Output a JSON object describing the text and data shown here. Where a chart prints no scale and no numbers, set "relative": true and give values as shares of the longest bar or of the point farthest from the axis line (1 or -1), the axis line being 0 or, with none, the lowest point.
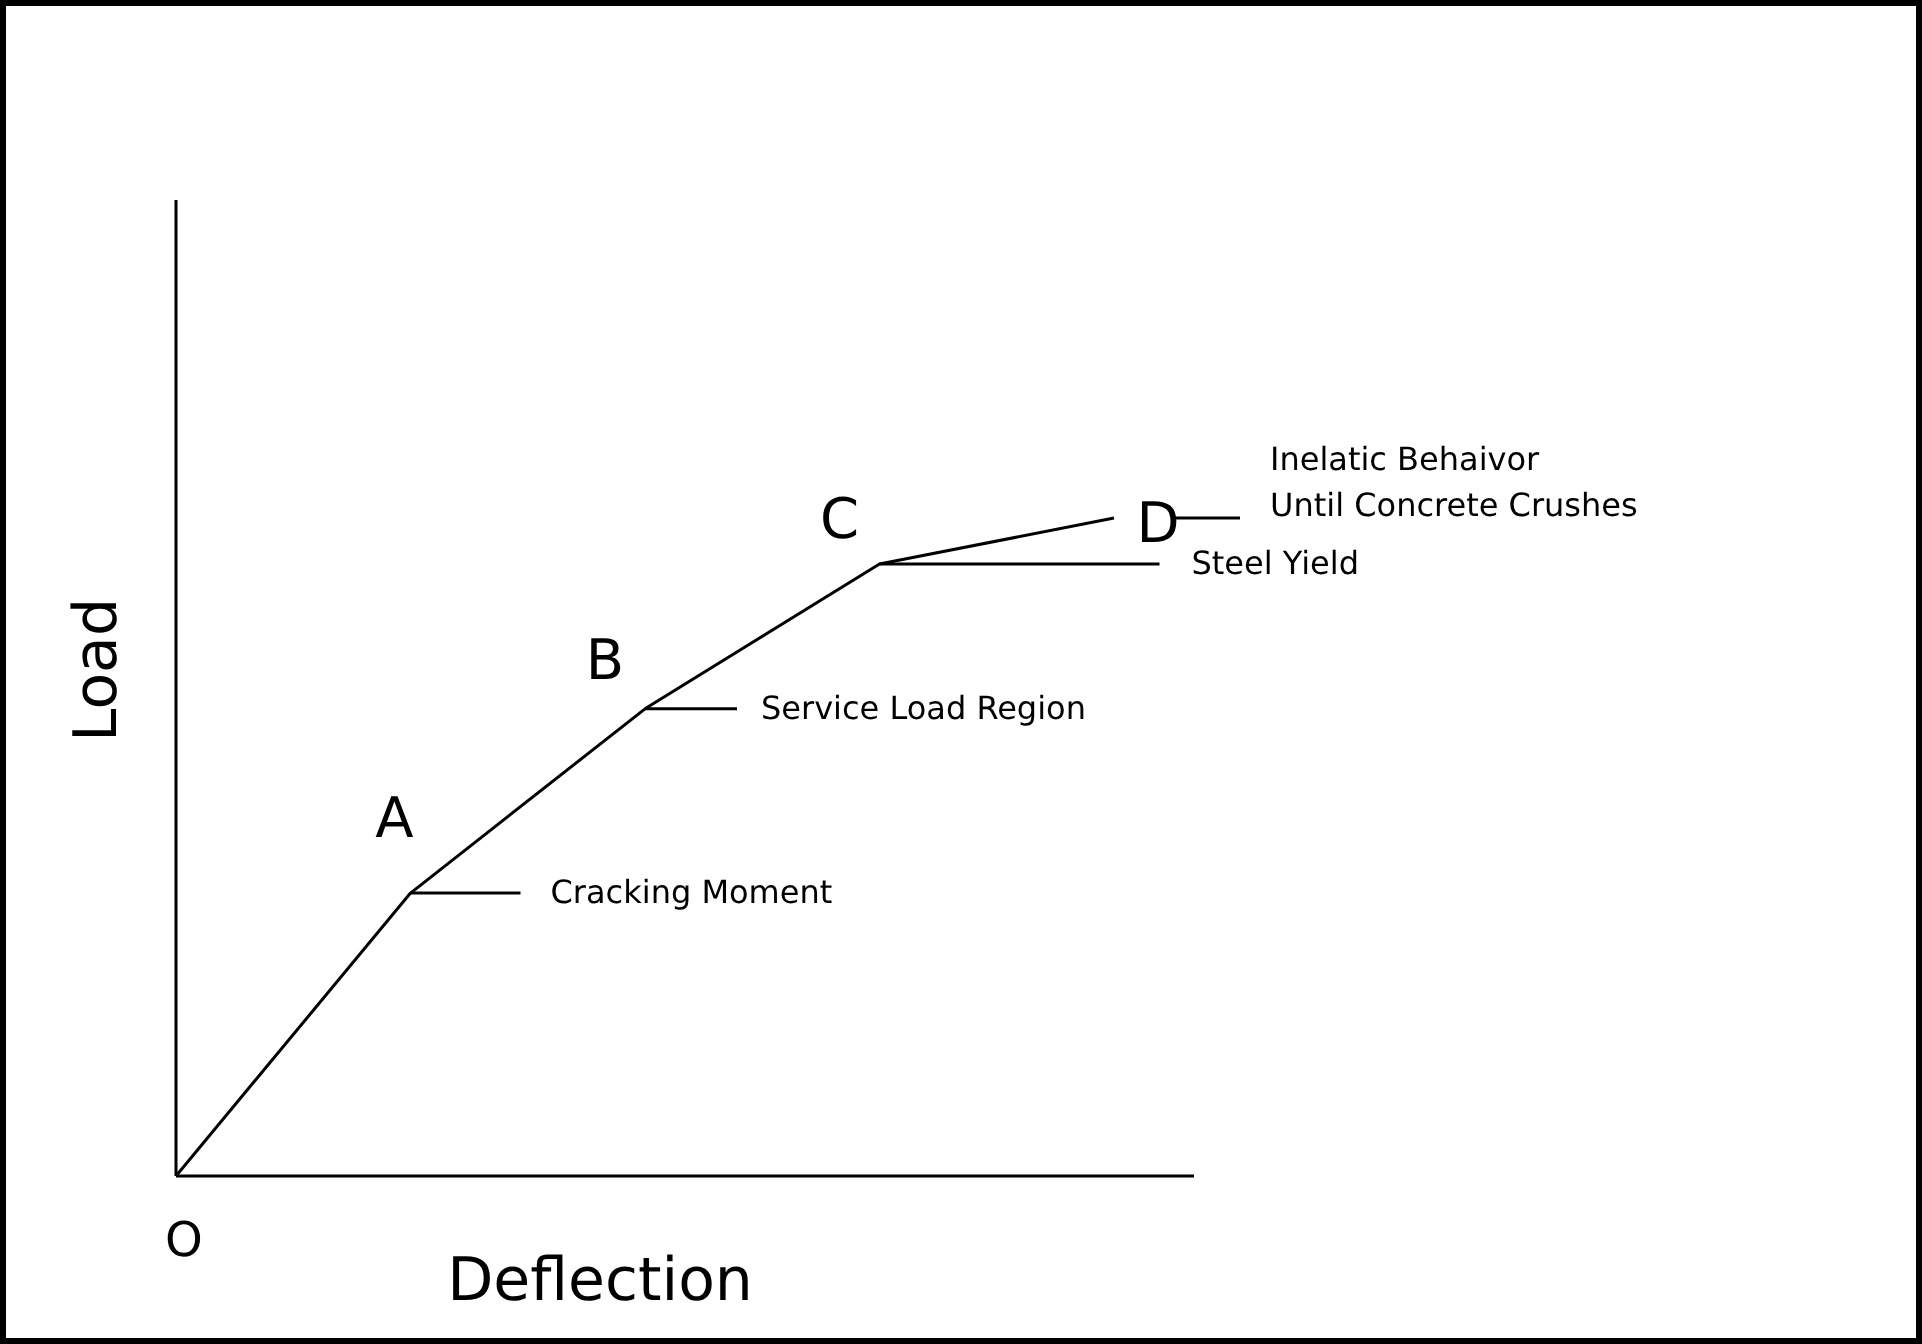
{
  "chart_data": {
    "type": "line",
    "relative": true,
    "xlabel": "Deflection",
    "ylabel": "Load",
    "color": "#000000",
    "categories": [
      null,
      null,
      null,
      null,
      null
    ],
    "values": [
      0,
      0.43,
      0.71,
      0.93,
      1
    ],
    "annotations": [
      "O",
      "A",
      "B",
      "C",
      "D",
      "Cracking Moment",
      "Service Load Region",
      "Steel Yield",
      "Inelatic Behaivor\nUntil Concrete Crushes"
    ]
  }
}
